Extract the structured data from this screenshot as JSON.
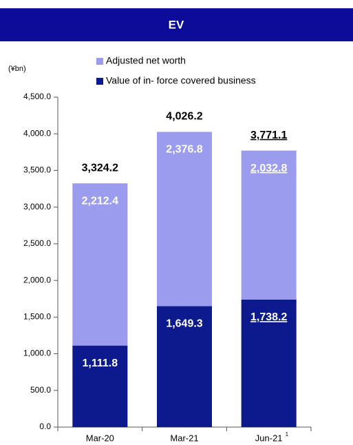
{
  "chart_data": {
    "type": "stacked_bar",
    "title": "EV",
    "unit_label": "(¥bn)",
    "categories": [
      "Mar-20",
      "Mar-21",
      "Jun-21"
    ],
    "category_superscripts": [
      null,
      null,
      "1"
    ],
    "series": [
      {
        "name": "Value of in- force covered business",
        "color": "#0d1a8e",
        "values": [
          1111.8,
          1649.3,
          1738.2
        ],
        "value_labels": [
          "1,111.8",
          "1,649.3",
          "1,738.2"
        ]
      },
      {
        "name": "Adjusted net worth",
        "color": "#9c9cef",
        "values": [
          2212.4,
          2376.8,
          2032.8
        ],
        "value_labels": [
          "2,212.4",
          "2,376.8",
          "2,032.8"
        ]
      }
    ],
    "totals": [
      3324.2,
      4026.2,
      3771.1
    ],
    "total_labels": [
      "3,324.2",
      "4,026.2",
      "3,771.1"
    ],
    "underlined": [
      false,
      false,
      true
    ],
    "ylim": [
      0,
      4500
    ],
    "yticks": [
      {
        "value": 0,
        "label": "0.0"
      },
      {
        "value": 500,
        "label": "500.0"
      },
      {
        "value": 1000,
        "label": "1,000.0"
      },
      {
        "value": 1500,
        "label": "1,500.0"
      },
      {
        "value": 2000,
        "label": "2,000.0"
      },
      {
        "value": 2500,
        "label": "2,500.0"
      },
      {
        "value": 3000,
        "label": "3,000.0"
      },
      {
        "value": 3500,
        "label": "3,500.0"
      },
      {
        "value": 4000,
        "label": "4,000.0"
      },
      {
        "value": 4500,
        "label": "4,500.0"
      }
    ],
    "grid": false
  }
}
